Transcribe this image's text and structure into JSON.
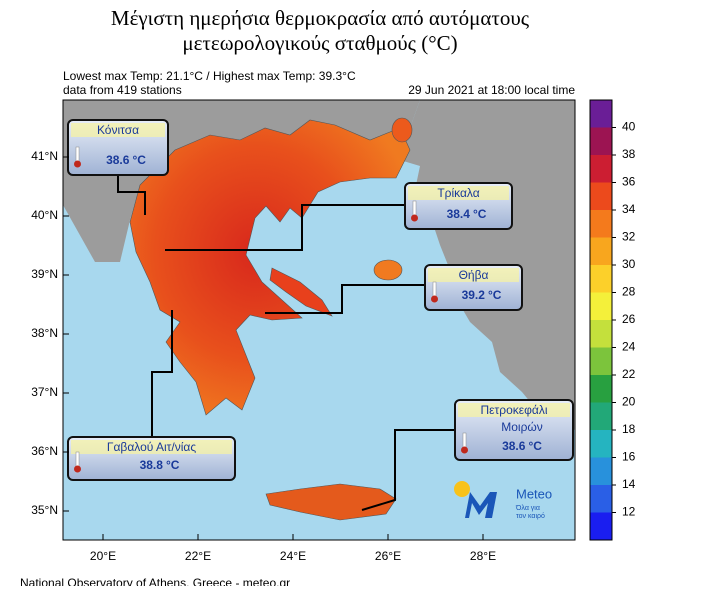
{
  "header": {
    "title_line1": "Μέγιστη ημερήσια θερμοκρασία από αυτόματους",
    "title_line2": "μετεωρολογικούς σταθμούς (°C)",
    "subtitle": "Lowest max Temp: 21.1°C / Highest max Temp: 39.3°C",
    "stations": "data from 419 stations",
    "time": "29 Jun 2021 at 18:00 local time"
  },
  "axes": {
    "lat_labels": [
      "41°N",
      "40°N",
      "39°N",
      "38°N",
      "37°N",
      "36°N",
      "35°N"
    ],
    "lon_labels": [
      "20°E",
      "22°E",
      "24°E",
      "26°E",
      "28°E"
    ]
  },
  "colorbar": {
    "ticks": [
      12,
      14,
      16,
      18,
      20,
      22,
      24,
      26,
      28,
      30,
      32,
      34,
      36,
      38,
      40
    ],
    "colors": [
      "#1a1ef0",
      "#2a5fe6",
      "#2891dc",
      "#25b4c0",
      "#22a878",
      "#28a040",
      "#7cc43c",
      "#c4e03c",
      "#f4f03a",
      "#fcd02a",
      "#f8a61e",
      "#f47a1c",
      "#ec4a1c",
      "#cc1e32",
      "#9c1452",
      "#6a1e96"
    ]
  },
  "callouts": [
    {
      "name": "Κόνιτσα",
      "temp": 38.6,
      "unit": "°C"
    },
    {
      "name": "Τρίκαλα",
      "temp": 38.4,
      "unit": "°C"
    },
    {
      "name": "Θήβα",
      "temp": 39.2,
      "unit": "°C"
    },
    {
      "name": "Πετροκεφάλι",
      "name2": "Μοιρών",
      "temp": 38.6,
      "unit": "°C"
    },
    {
      "name": "Γαβαλού Αιτ/νίας",
      "temp": 38.8,
      "unit": "°C"
    }
  ],
  "logo": {
    "brand": "Meteo",
    "tagline1": "Όλα για",
    "tagline2": "τον καιρό"
  },
  "footer": "National Observatory of Athens, Greece - meteo.gr"
}
